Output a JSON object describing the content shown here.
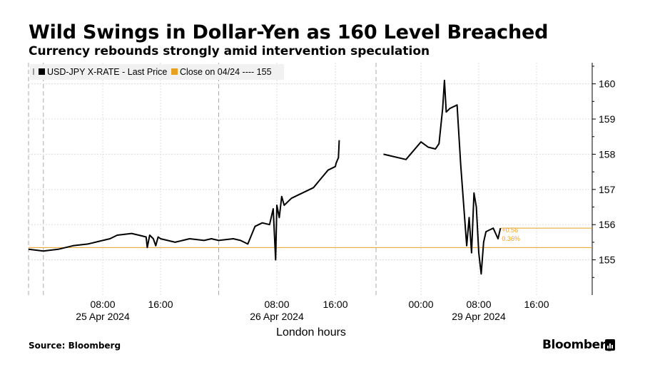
{
  "header": {
    "title": "Wild Swings in Dollar-Yen as 160 Level Breached",
    "subtitle": "Currency rebounds strongly amid intervention speculation"
  },
  "footer": {
    "source": "Source: Bloomberg",
    "brand": "Bloomberg",
    "brand_icon": "bloomberg-terminal-icon"
  },
  "chart_data": {
    "type": "line",
    "xlabel": "London hours",
    "ylabel": "",
    "ylim": [
      154,
      160.6
    ],
    "y_ticks": [
      155,
      156,
      157,
      158,
      159,
      160
    ],
    "y_tick_labels": [
      "155",
      "156",
      "157",
      "158",
      "159",
      "160"
    ],
    "y_axis_side": "right",
    "grid": true,
    "legend_placement": "top-left",
    "x_ticks": [
      {
        "time": "2024-04-25 08:00",
        "label": "08:00"
      },
      {
        "time": "2024-04-25 16:00",
        "label": "16:00"
      },
      {
        "time": "2024-04-26 08:00",
        "label": "08:00"
      },
      {
        "time": "2024-04-26 16:00",
        "label": "16:00"
      },
      {
        "time": "2024-04-29 00:00",
        "label": "00:00"
      },
      {
        "time": "2024-04-29 08:00",
        "label": "08:00"
      },
      {
        "time": "2024-04-29 16:00",
        "label": "16:00"
      }
    ],
    "date_labels": [
      {
        "at": "2024-04-25 08:00",
        "label": "25 Apr 2024"
      },
      {
        "at": "2024-04-26 08:00",
        "label": "26 Apr 2024"
      },
      {
        "at": "2024-04-29 08:00",
        "label": "29 Apr 2024"
      }
    ],
    "day_boundaries": [
      "2024-04-25 00:00",
      "2024-04-26 00:00",
      "2024-04-28 21:00"
    ],
    "legend": [
      {
        "label": "USD-JPY X-RATE - Last Price",
        "color": "#000000"
      },
      {
        "label": "Close on 04/24 ---- 155",
        "color": "#e8a020"
      }
    ],
    "reference_line": {
      "value": 155.35,
      "color": "#e8a020"
    },
    "annotations": [
      {
        "label": "+0.56",
        "color": "#e8a020"
      },
      {
        "label": "0.36%",
        "color": "#e8a020"
      }
    ],
    "last_value_line": {
      "value": 155.9,
      "color": "#e8a020"
    },
    "series": [
      {
        "color": "#000000",
        "segments": [
          {
            "x": [
              "2024-04-24 22:00",
              "2024-04-25 00:00",
              "2024-04-25 02:00",
              "2024-04-25 04:00",
              "2024-04-25 06:00",
              "2024-04-25 08:00",
              "2024-04-25 09:00",
              "2024-04-25 10:00",
              "2024-04-25 12:00",
              "2024-04-25 13:00",
              "2024-04-25 14:00",
              "2024-04-25 14:10",
              "2024-04-25 14:30",
              "2024-04-25 15:00",
              "2024-04-25 15:20",
              "2024-04-25 15:40",
              "2024-04-25 16:00",
              "2024-04-25 18:00",
              "2024-04-25 20:00",
              "2024-04-25 22:00",
              "2024-04-25 23:00",
              "2024-04-26 00:00",
              "2024-04-26 02:00",
              "2024-04-26 03:00",
              "2024-04-26 04:00",
              "2024-04-26 05:00",
              "2024-04-26 06:00",
              "2024-04-26 07:00",
              "2024-04-26 07:30",
              "2024-04-26 07:50",
              "2024-04-26 08:00",
              "2024-04-26 08:20",
              "2024-04-26 08:40",
              "2024-04-26 09:00",
              "2024-04-26 10:00",
              "2024-04-26 11:00",
              "2024-04-26 12:00",
              "2024-04-26 13:00",
              "2024-04-26 14:00",
              "2024-04-26 15:00",
              "2024-04-26 16:00",
              "2024-04-26 17:00",
              "2024-04-26 18:00",
              "2024-04-26 19:00",
              "2024-04-26 20:00",
              "2024-04-26 20:40",
              "2024-04-26 21:00"
            ],
            "y": [
              155.3,
              155.25,
              155.3,
              155.4,
              155.45,
              155.55,
              155.6,
              155.7,
              155.75,
              155.7,
              155.65,
              155.35,
              155.7,
              155.6,
              155.4,
              155.65,
              155.6,
              155.5,
              155.6,
              155.55,
              155.6,
              155.55,
              155.6,
              155.55,
              155.45,
              155.95,
              156.05,
              156.0,
              156.45,
              155.0,
              156.55,
              156.2,
              156.8,
              156.55,
              156.75,
              156.85,
              156.95,
              157.05,
              157.3,
              157.55,
              157.65,
              157.75,
              157.8,
              157.85,
              157.9,
              158.2,
              158.4
            ]
          },
          {
            "x": [
              "2024-04-28 21:30",
              "2024-04-28 22:00",
              "2024-04-28 23:00",
              "2024-04-29 00:00",
              "2024-04-29 01:00",
              "2024-04-29 02:00",
              "2024-04-29 02:30",
              "2024-04-29 03:00",
              "2024-04-29 03:15",
              "2024-04-29 03:30",
              "2024-04-29 04:00",
              "2024-04-29 05:00",
              "2024-04-29 05:30",
              "2024-04-29 06:00",
              "2024-04-29 06:20",
              "2024-04-29 06:40",
              "2024-04-29 07:00",
              "2024-04-29 07:20",
              "2024-04-29 07:40",
              "2024-04-29 08:00",
              "2024-04-29 08:20",
              "2024-04-29 08:40",
              "2024-04-29 09:00",
              "2024-04-29 09:30",
              "2024-04-29 10:00",
              "2024-04-29 10:40",
              "2024-04-29 11:00"
            ],
            "y": [
              158.0,
              157.95,
              157.85,
              158.35,
              158.2,
              158.15,
              158.3,
              159.3,
              160.1,
              159.2,
              159.3,
              159.4,
              157.7,
              156.3,
              155.4,
              156.2,
              155.2,
              156.9,
              156.5,
              155.2,
              154.6,
              155.5,
              155.8,
              155.85,
              155.9,
              155.6,
              155.9
            ]
          }
        ]
      }
    ]
  }
}
